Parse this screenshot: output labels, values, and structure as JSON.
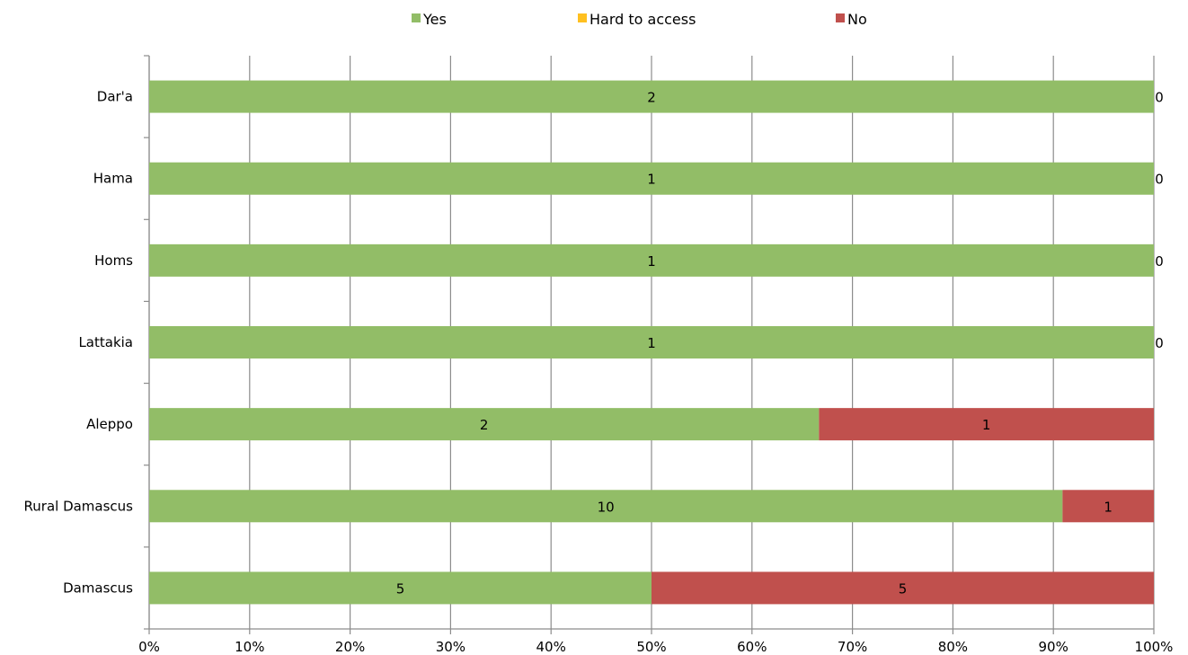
{
  "chart_data": {
    "type": "bar",
    "orientation": "horizontal",
    "stacking": "percent",
    "categories": [
      "Dar'a",
      "Hama",
      "Homs",
      "Lattakia",
      "Aleppo",
      "Rural Damascus",
      "Damascus"
    ],
    "series": [
      {
        "name": "Yes",
        "color": "#92BD67",
        "values": [
          2,
          1,
          1,
          1,
          2,
          10,
          5
        ]
      },
      {
        "name": "Hard to access",
        "color": "#FFC020",
        "values": [
          0,
          0,
          0,
          0,
          0,
          0,
          0
        ]
      },
      {
        "name": "No",
        "color": "#C0504D",
        "values": [
          0,
          0,
          0,
          0,
          1,
          1,
          5
        ]
      }
    ],
    "x_ticks": [
      "0%",
      "10%",
      "20%",
      "30%",
      "40%",
      "50%",
      "60%",
      "70%",
      "80%",
      "90%",
      "100%"
    ],
    "xlim": [
      0,
      100
    ],
    "grid": true,
    "legend_position": "top"
  }
}
